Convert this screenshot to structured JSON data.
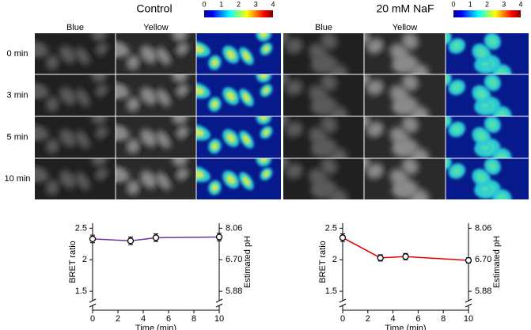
{
  "panels": [
    {
      "title": "Control",
      "columns": [
        "Blue",
        "Yellow"
      ],
      "colorbar_ticks": [
        0,
        1,
        2,
        3,
        4
      ]
    },
    {
      "title": "20 mM NaF",
      "columns": [
        "Blue",
        "Yellow"
      ],
      "colorbar_ticks": [
        0,
        1,
        2,
        3,
        4
      ]
    }
  ],
  "rows": [
    "0 min",
    "3 min",
    "5 min",
    "10 min"
  ],
  "chart_data": [
    {
      "type": "line",
      "x": [
        0,
        3,
        5,
        10
      ],
      "series": [
        {
          "color": "#7030a0",
          "values": [
            2.33,
            2.3,
            2.35,
            2.36
          ],
          "errors": [
            0.06,
            0.06,
            0.06,
            0.06
          ]
        }
      ],
      "xlim": [
        0,
        10
      ],
      "xticks": [
        0,
        2,
        4,
        6,
        8,
        10
      ],
      "xlabel": "Time (min)",
      "ylim": [
        1.2,
        2.58
      ],
      "yticks": [
        1.5,
        2,
        2.5
      ],
      "ylabel": "BRET ratio",
      "axis_break": true,
      "y2ticks": [
        5.88,
        {
          "value": 6.7,
          "label": "6.70"
        },
        8.06
      ],
      "y2label": "Estimated pH"
    },
    {
      "type": "line",
      "x": [
        0,
        3,
        5,
        10
      ],
      "series": [
        {
          "color": "#e00000",
          "values": [
            2.35,
            2.03,
            2.05,
            1.99
          ],
          "errors": [
            0.06,
            0.05,
            0.05,
            0.04
          ]
        }
      ],
      "xlim": [
        0,
        10
      ],
      "xticks": [
        0,
        2,
        4,
        6,
        8,
        10
      ],
      "xlabel": "Time (min)",
      "ylim": [
        1.2,
        2.58
      ],
      "yticks": [
        1.5,
        2,
        2.5
      ],
      "ylabel": "BRET ratio",
      "axis_break": true,
      "y2ticks": [
        5.88,
        {
          "value": 6.7,
          "label": "6.70"
        },
        8.06
      ],
      "y2label": "Estimated pH"
    }
  ]
}
